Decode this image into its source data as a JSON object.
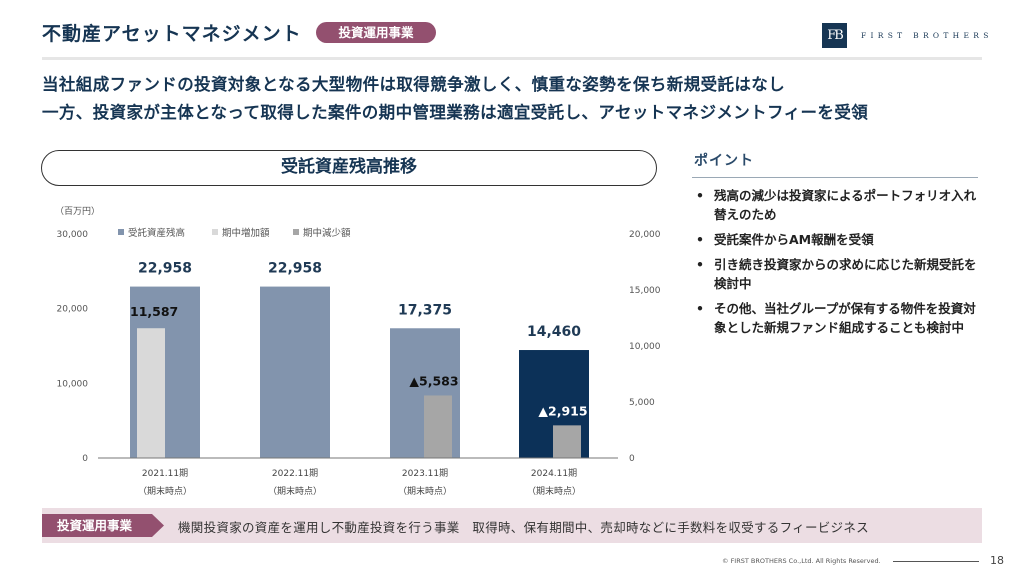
{
  "header": {
    "title": "不動産アセットマネジメント",
    "badge": "投資運用事業",
    "logo_mark": "FB",
    "logo_text": "FIRST BROTHERS"
  },
  "lead": {
    "line1": "当社組成ファンドの投資対象となる大型物件は取得競争激しく、慎重な姿勢を保ち新規受託はなし",
    "line2": "一方、投資家が主体となって取得した案件の期中管理業務は適宜受託し、アセットマネジメントフィーを受領"
  },
  "chart_data": {
    "type": "bar",
    "title": "受託資産残高推移",
    "unit_label": "（百万円）",
    "categories": [
      "2021.11期",
      "2022.11期",
      "2023.11期",
      "2024.11期"
    ],
    "category_sublabel": "（期末時点）",
    "legend": [
      "受託資産残高",
      "期中増加額",
      "期中減少額"
    ],
    "legend_position": "top-left",
    "grid": false,
    "left_axis": {
      "ylim": [
        0,
        30000
      ],
      "ticks": [
        "0",
        "10,000",
        "20,000",
        "30,000"
      ],
      "tick_values": [
        0,
        10000,
        20000,
        30000
      ]
    },
    "right_axis": {
      "ylim": [
        0,
        20000
      ],
      "ticks": [
        "0",
        "5,000",
        "10,000",
        "15,000",
        "20,000"
      ],
      "tick_values": [
        0,
        5000,
        10000,
        15000,
        20000
      ]
    },
    "series": [
      {
        "name": "受託資産残高",
        "axis": "left",
        "values": [
          22958,
          22958,
          17375,
          14460
        ],
        "labels": [
          "22,958",
          "22,958",
          "17,375",
          "14,460"
        ]
      },
      {
        "name": "期中増加額",
        "axis": "right",
        "values": [
          11587,
          null,
          null,
          null
        ],
        "labels": [
          "11,587",
          "",
          "",
          ""
        ]
      },
      {
        "name": "期中減少額",
        "axis": "right",
        "values": [
          null,
          null,
          5583,
          2915
        ],
        "labels": [
          "",
          "",
          "▲5,583",
          "▲2,915"
        ]
      }
    ],
    "colors": {
      "balance": "#8294ad",
      "balance_latest": "#0c3158",
      "increase": "#d9d9d9",
      "decrease": "#a6a6a6"
    }
  },
  "points": {
    "heading": "ポイント",
    "bullet": "•",
    "items": [
      "残高の減少は投資家によるポートフォリオ入れ替えのため",
      "受託案件からAM報酬を受領",
      "引き続き投資家からの求めに応じた新規受託を検討中",
      "その他、当社グループが保有する物件を投資対象とした新規ファンド組成することも検討中"
    ]
  },
  "footer": {
    "tag": "投資運用事業",
    "description": "機関投資家の資産を運用し不動産投資を行う事業　取得時、保有期間中、売却時などに手数料を収受するフィービジネス",
    "copyright": "© FIRST BROTHERS Co.,Ltd. All Rights Reserved.",
    "page_number": "18"
  },
  "colors": {
    "navy": "#163553",
    "accent": "#93506f",
    "band": "#ecdde3"
  }
}
